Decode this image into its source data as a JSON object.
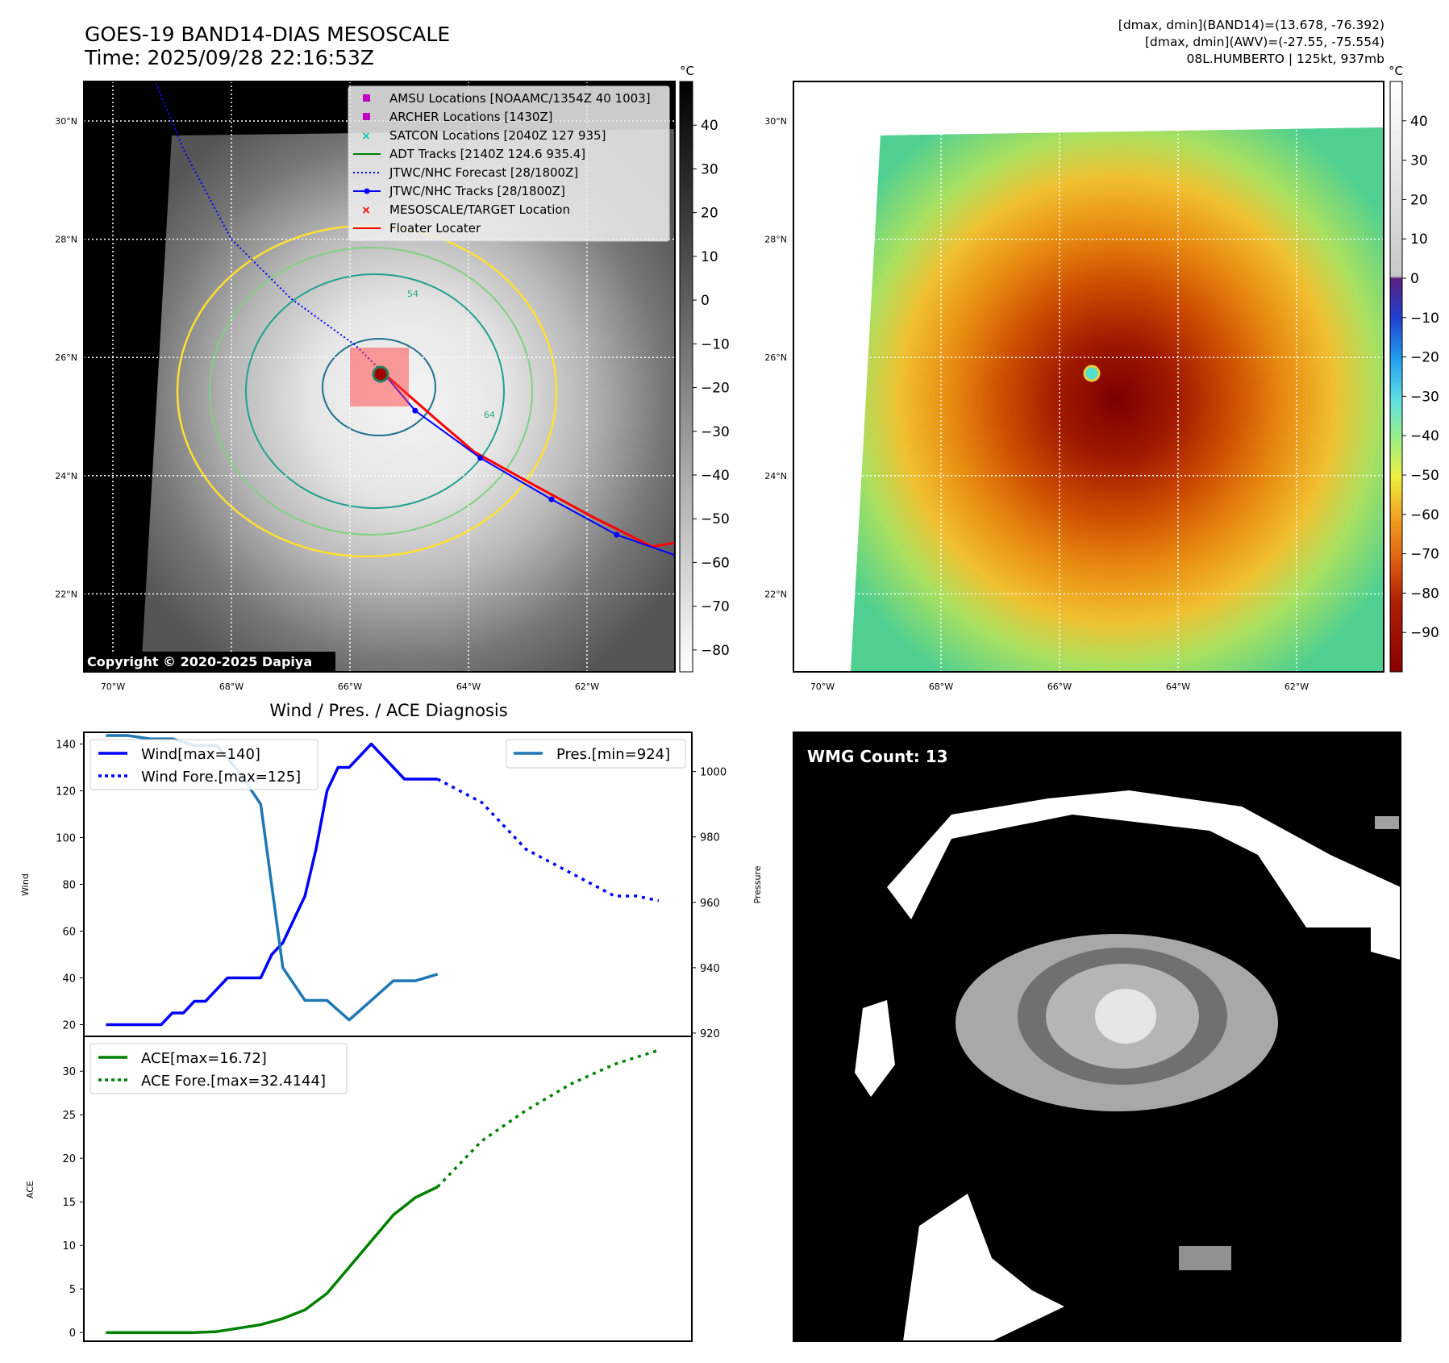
{
  "header": {
    "title_line1": "GOES-19 BAND14-DIAS MESOSCALE",
    "title_line2": "Time: 2025/09/28 22:16:53Z",
    "info_line1": "[dmax, dmin](BAND14)=(13.678, -76.392)",
    "info_line2": "[dmax, dmin](AWV)=(-27.55, -75.554)",
    "info_line3": "08L.HUMBERTO | 125kt, 937mb"
  },
  "map": {
    "lat_labels": [
      "30°N",
      "28°N",
      "26°N",
      "24°N",
      "22°N"
    ],
    "lat_values": [
      30,
      28,
      26,
      24,
      22
    ],
    "lon_labels": [
      "70°W",
      "68°W",
      "66°W",
      "64°W",
      "62°W"
    ],
    "lon_values": [
      -70,
      -68,
      -66,
      -64,
      -62
    ],
    "copyright": "Copyright © 2020-2025 Dapiya",
    "legend": [
      {
        "label": "AMSU Locations [NOAAMC/1354Z 40 1003]",
        "color": "#c000c0",
        "marker": "square"
      },
      {
        "label": "ARCHER Locations [1430Z]",
        "color": "#c000c0",
        "marker": "square"
      },
      {
        "label": "SATCON Locations [2040Z 127 935]",
        "color": "#17bfbf",
        "marker": "x"
      },
      {
        "label": "ADT Tracks [2140Z 124.6 935.4]",
        "color": "#008000",
        "marker": "line"
      },
      {
        "label": "JTWC/NHC Forecast [28/1800Z]",
        "color": "#0000ff",
        "marker": "dotted"
      },
      {
        "label": "JTWC/NHC Tracks [28/1800Z]",
        "color": "#0000ff",
        "marker": "line-dot"
      },
      {
        "label": "MESOSCALE/TARGET Location",
        "color": "#ff0000",
        "marker": "x"
      },
      {
        "label": "Floater Locater",
        "color": "#ff0000",
        "marker": "line"
      }
    ],
    "contour_labels": [
      "54",
      "64"
    ],
    "storm_center": {
      "lat": 25.75,
      "lon": -65.45
    }
  },
  "colorbar_gray": {
    "unit": "°C",
    "ticks": [
      "40",
      "30",
      "20",
      "10",
      "0",
      "−10",
      "−20",
      "−30",
      "−40",
      "−50",
      "−60",
      "−70",
      "−80"
    ],
    "tick_values": [
      40,
      30,
      20,
      10,
      0,
      -10,
      -20,
      -30,
      -40,
      -50,
      -60,
      -70,
      -80
    ],
    "range": [
      -85,
      50
    ]
  },
  "colorbar_color": {
    "unit": "°C",
    "ticks": [
      "40",
      "30",
      "20",
      "10",
      "0",
      "−10",
      "−20",
      "−30",
      "−40",
      "−50",
      "−60",
      "−70",
      "−80",
      "−90"
    ],
    "tick_values": [
      40,
      30,
      20,
      10,
      0,
      -10,
      -20,
      -30,
      -40,
      -50,
      -60,
      -70,
      -80,
      -90
    ],
    "range": [
      -100,
      50
    ]
  },
  "wmg": {
    "label": "WMG Count: 13"
  },
  "chart_data": [
    {
      "type": "line",
      "title": "Wind / Pres. / ACE Diagnosis",
      "ylabel": "Wind",
      "ylabel_right": "Pressure",
      "ylim": [
        15,
        145
      ],
      "ylim_right": [
        919,
        1012
      ],
      "y_ticks": [
        20,
        40,
        60,
        80,
        100,
        120,
        140
      ],
      "y_tick_labels": [
        "20",
        "40",
        "60",
        "80",
        "100",
        "120",
        "140"
      ],
      "y_ticks_right": [
        920,
        940,
        960,
        980,
        1000
      ],
      "y_tick_labels_right": [
        "920",
        "940",
        "960",
        "980",
        "1000"
      ],
      "xlim": [
        -2,
        53
      ],
      "legend_left": [
        "Wind[max=140]",
        "Wind Fore.[max=125]"
      ],
      "legend_right": [
        "Pres.[min=924]"
      ],
      "series": [
        {
          "name": "Wind[max=140]",
          "color": "#0000ff",
          "style": "solid",
          "axis": "left",
          "x": [
            0,
            1,
            2,
            3,
            4,
            5,
            6,
            7,
            8,
            9,
            10,
            11,
            12,
            13,
            14,
            15,
            16,
            17,
            18,
            19,
            20,
            21,
            22,
            23,
            24,
            25,
            26,
            27,
            28,
            29,
            30
          ],
          "y": [
            20,
            20,
            20,
            20,
            20,
            20,
            25,
            25,
            30,
            30,
            35,
            40,
            40,
            40,
            40,
            50,
            55,
            65,
            75,
            95,
            120,
            130,
            130,
            135,
            140,
            135,
            130,
            125,
            125,
            125,
            125
          ]
        },
        {
          "name": "Wind Fore.[max=125]",
          "color": "#0000ff",
          "style": "dotted",
          "axis": "left",
          "x": [
            30,
            34,
            38,
            42,
            46,
            48,
            50
          ],
          "y": [
            125,
            115,
            95,
            85,
            75,
            75,
            73
          ]
        },
        {
          "name": "Pres.[min=924]",
          "color": "#1f77b4",
          "style": "solid",
          "axis": "right",
          "x": [
            0,
            2,
            4,
            6,
            8,
            10,
            12,
            14,
            16,
            18,
            20,
            22,
            24,
            26,
            28,
            30
          ],
          "y": [
            1011,
            1011,
            1010,
            1010,
            1008,
            1008,
            1000,
            990,
            940,
            930,
            930,
            924,
            930,
            936,
            936,
            938
          ]
        }
      ]
    },
    {
      "type": "line",
      "ylabel": "ACE",
      "ylim": [
        -1,
        34
      ],
      "y_ticks": [
        0,
        5,
        10,
        15,
        20,
        25,
        30
      ],
      "y_tick_labels": [
        "0",
        "5",
        "10",
        "15",
        "20",
        "25",
        "30"
      ],
      "xlim": [
        -2,
        53
      ],
      "legend": [
        "ACE[max=16.72]",
        "ACE Fore.[max=32.4144]"
      ],
      "series": [
        {
          "name": "ACE[max=16.72]",
          "color": "#008000",
          "style": "solid",
          "x": [
            0,
            4,
            8,
            10,
            12,
            14,
            16,
            18,
            20,
            22,
            24,
            26,
            28,
            30
          ],
          "y": [
            0,
            0,
            0,
            0.1,
            0.5,
            0.9,
            1.6,
            2.6,
            4.5,
            7.5,
            10.5,
            13.5,
            15.5,
            16.72
          ]
        },
        {
          "name": "ACE Fore.[max=32.4144]",
          "color": "#008000",
          "style": "dotted",
          "x": [
            30,
            34,
            38,
            42,
            46,
            50
          ],
          "y": [
            16.72,
            22,
            25.5,
            28.5,
            30.8,
            32.4144
          ]
        }
      ]
    }
  ]
}
